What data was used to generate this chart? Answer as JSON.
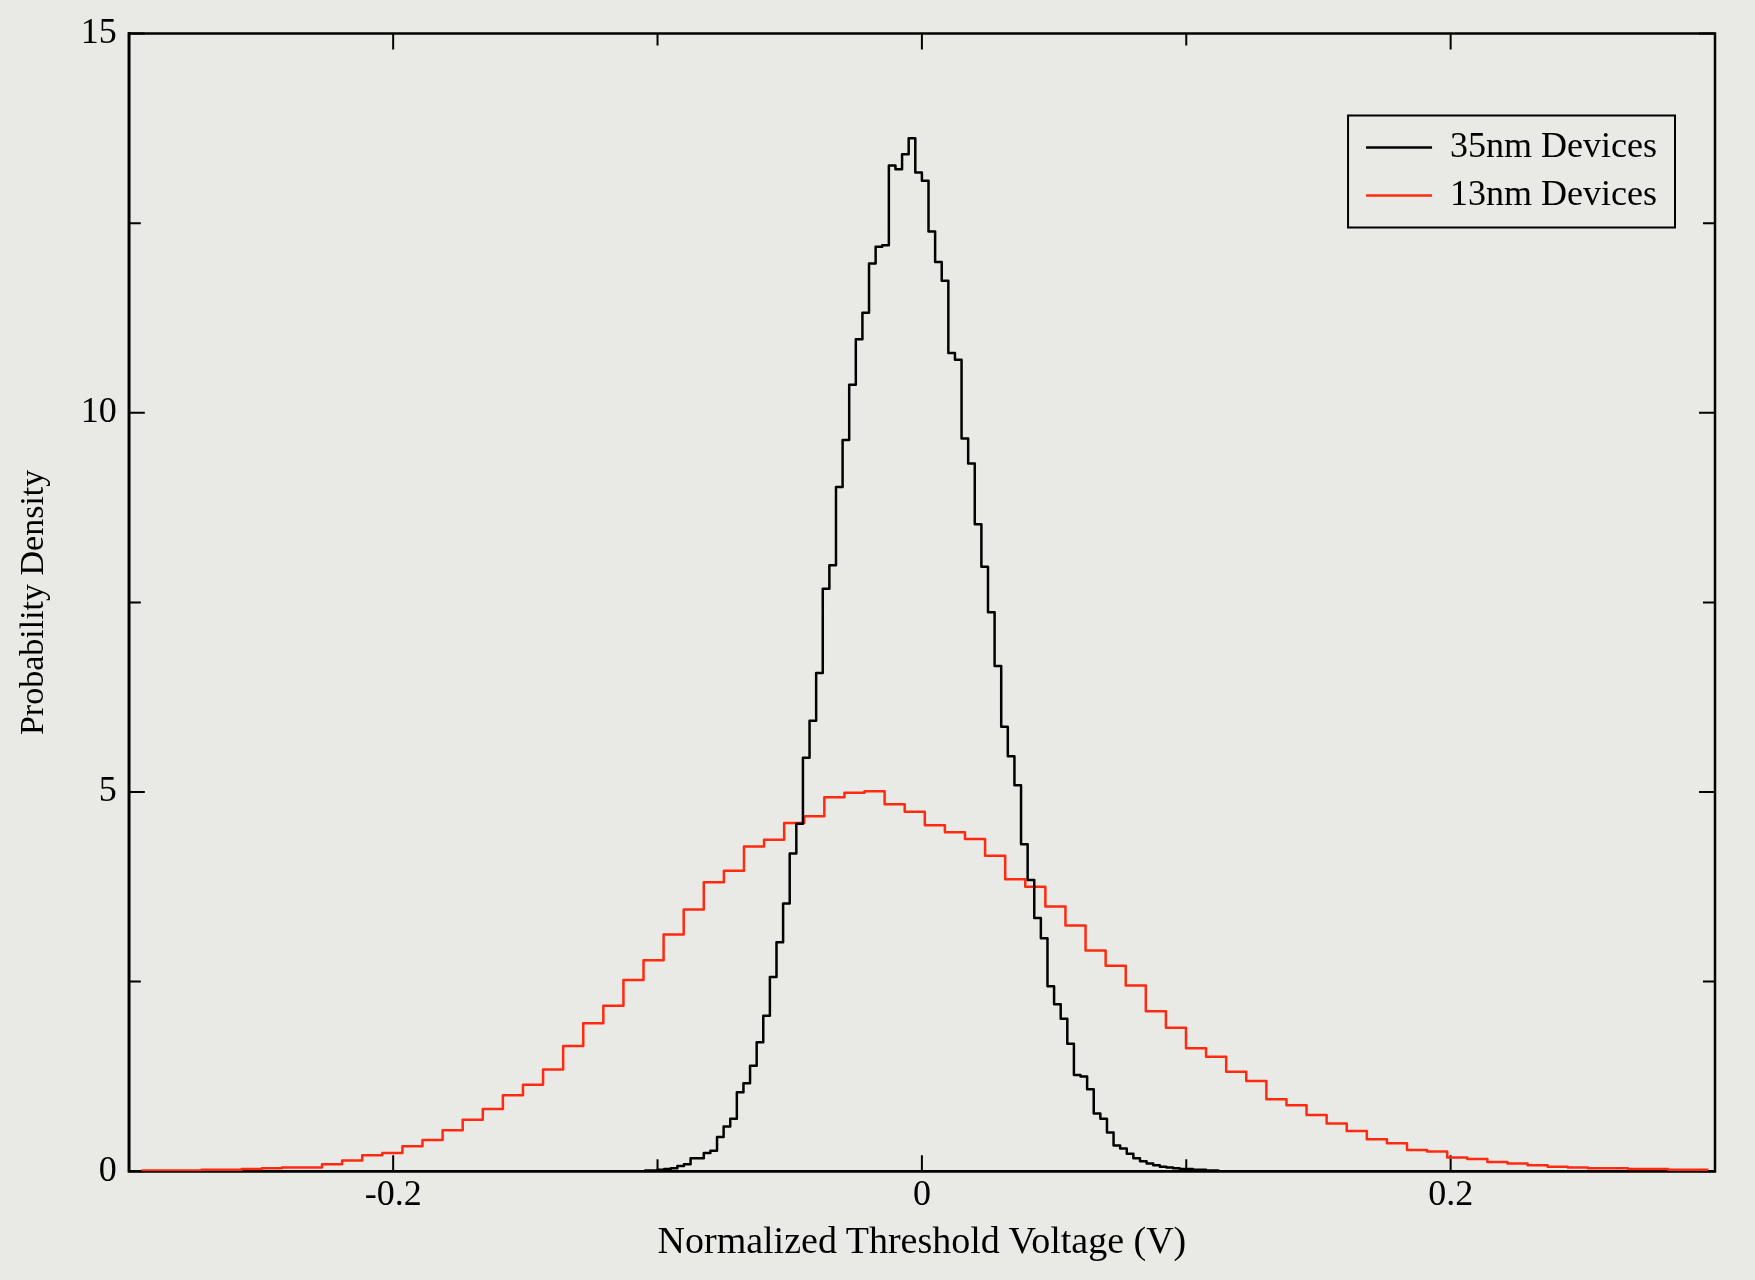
{
  "chart_data": {
    "type": "step",
    "xlabel": "Normalized Threshold Voltage (V)",
    "ylabel": "Probability Density",
    "xlim": [
      -0.3,
      0.3
    ],
    "ylim": [
      0,
      15
    ],
    "xticks": [
      {
        "value": -0.2,
        "label": "-0.2"
      },
      {
        "value": -0.1,
        "label": null
      },
      0,
      {
        "value": 0.1,
        "label": null
      },
      {
        "value": 0.2,
        "label": "0.2"
      }
    ],
    "yticks": [
      0,
      {
        "value": 2.5,
        "label": null
      },
      5,
      {
        "value": 7.5,
        "label": null
      },
      10,
      {
        "value": 12.5,
        "label": null
      },
      15
    ],
    "legend": "top right",
    "series": [
      {
        "name": "35nm Devices",
        "color": "#000000",
        "x": [
          -0.105,
          -0.1025,
          -0.1,
          -0.0975,
          -0.095,
          -0.0925,
          -0.09,
          -0.0875,
          -0.085,
          -0.0825,
          -0.08,
          -0.0775,
          -0.075,
          -0.0725,
          -0.07,
          -0.0675,
          -0.065,
          -0.0625,
          -0.06,
          -0.0575,
          -0.055,
          -0.0525,
          -0.05,
          -0.0475,
          -0.045,
          -0.0425,
          -0.04,
          -0.0375,
          -0.035,
          -0.0325,
          -0.03,
          -0.0275,
          -0.025,
          -0.0225,
          -0.02,
          -0.0175,
          -0.015,
          -0.0125,
          -0.01,
          -0.0075,
          -0.005,
          -0.0025,
          0,
          0.0025,
          0.005,
          0.0075,
          0.01,
          0.0125,
          0.015,
          0.0175,
          0.02,
          0.0225,
          0.025,
          0.0275,
          0.03,
          0.0325,
          0.035,
          0.0375,
          0.04,
          0.0425,
          0.045,
          0.0475,
          0.05,
          0.0525,
          0.055,
          0.0575,
          0.06,
          0.0625,
          0.065,
          0.0675,
          0.07,
          0.0725,
          0.075,
          0.0775,
          0.08,
          0.0825,
          0.085,
          0.0875,
          0.09,
          0.0925,
          0.095,
          0.0975,
          0.1,
          0.1025,
          0.105,
          0.1075,
          0.11,
          0.1125
        ],
        "values": [
          0.01,
          0.01,
          0.01,
          0.02,
          0.03,
          0.04,
          0.07,
          0.09,
          0.17,
          0.17,
          0.24,
          0.27,
          0.45,
          0.59,
          0.69,
          1.04,
          1.16,
          1.39,
          1.7,
          2.05,
          2.56,
          3.02,
          3.53,
          4.19,
          4.58,
          5.45,
          5.94,
          6.57,
          7.68,
          7.99,
          9.02,
          9.64,
          10.37,
          10.97,
          11.32,
          11.97,
          12.19,
          12.21,
          13.26,
          13.21,
          13.41,
          13.62,
          13.17,
          13.06,
          12.39,
          11.99,
          11.74,
          10.79,
          10.7,
          9.66,
          9.33,
          8.53,
          7.97,
          7.37,
          6.66,
          5.86,
          5.47,
          5.09,
          4.31,
          3.84,
          3.34,
          3.07,
          2.44,
          2.2,
          2.01,
          1.68,
          1.27,
          1.25,
          1.08,
          0.76,
          0.69,
          0.51,
          0.34,
          0.3,
          0.23,
          0.17,
          0.13,
          0.1,
          0.08,
          0.06,
          0.05,
          0.04,
          0.03,
          0.03,
          0.02,
          0.02,
          0.01,
          0.01
        ]
      },
      {
        "name": "13nm Devices",
        "color": "#ff2a10",
        "x": [
          -0.2953,
          -0.2877,
          -0.2801,
          -0.2725,
          -0.2649,
          -0.2573,
          -0.2497,
          -0.2421,
          -0.2345,
          -0.2269,
          -0.2193,
          -0.2117,
          -0.2041,
          -0.1965,
          -0.1889,
          -0.1813,
          -0.1737,
          -0.1661,
          -0.1585,
          -0.1509,
          -0.1433,
          -0.1357,
          -0.1281,
          -0.1205,
          -0.1129,
          -0.1053,
          -0.0977,
          -0.0901,
          -0.0825,
          -0.0749,
          -0.0673,
          -0.0597,
          -0.0521,
          -0.0445,
          -0.0369,
          -0.0293,
          -0.0217,
          -0.0141,
          -0.0065,
          0.0011,
          0.0087,
          0.0163,
          0.0239,
          0.0315,
          0.0391,
          0.0467,
          0.0543,
          0.0619,
          0.0695,
          0.0771,
          0.0847,
          0.0923,
          0.0999,
          0.1075,
          0.1151,
          0.1227,
          0.1303,
          0.1379,
          0.1455,
          0.1531,
          0.1607,
          0.1683,
          0.1759,
          0.1835,
          0.1911,
          0.1987,
          0.2063,
          0.2139,
          0.2215,
          0.2291,
          0.2367,
          0.2443,
          0.2519,
          0.2595,
          0.2671,
          0.2747,
          0.2823,
          0.2899,
          0.2975
        ],
        "values": [
          0.01,
          0.01,
          0.01,
          0.01,
          0.02,
          0.02,
          0.03,
          0.04,
          0.05,
          0.05,
          0.09,
          0.14,
          0.21,
          0.24,
          0.33,
          0.41,
          0.54,
          0.68,
          0.82,
          1.0,
          1.14,
          1.34,
          1.65,
          1.95,
          2.18,
          2.52,
          2.78,
          3.12,
          3.45,
          3.81,
          3.96,
          4.28,
          4.37,
          4.59,
          4.68,
          4.93,
          4.99,
          5.01,
          4.84,
          4.74,
          4.56,
          4.47,
          4.38,
          4.16,
          3.85,
          3.75,
          3.49,
          3.24,
          2.91,
          2.71,
          2.45,
          2.11,
          1.89,
          1.62,
          1.51,
          1.31,
          1.19,
          0.95,
          0.87,
          0.74,
          0.63,
          0.53,
          0.42,
          0.37,
          0.28,
          0.26,
          0.18,
          0.16,
          0.12,
          0.1,
          0.08,
          0.06,
          0.05,
          0.04,
          0.04,
          0.03,
          0.03,
          0.02,
          0.02
        ]
      }
    ]
  }
}
